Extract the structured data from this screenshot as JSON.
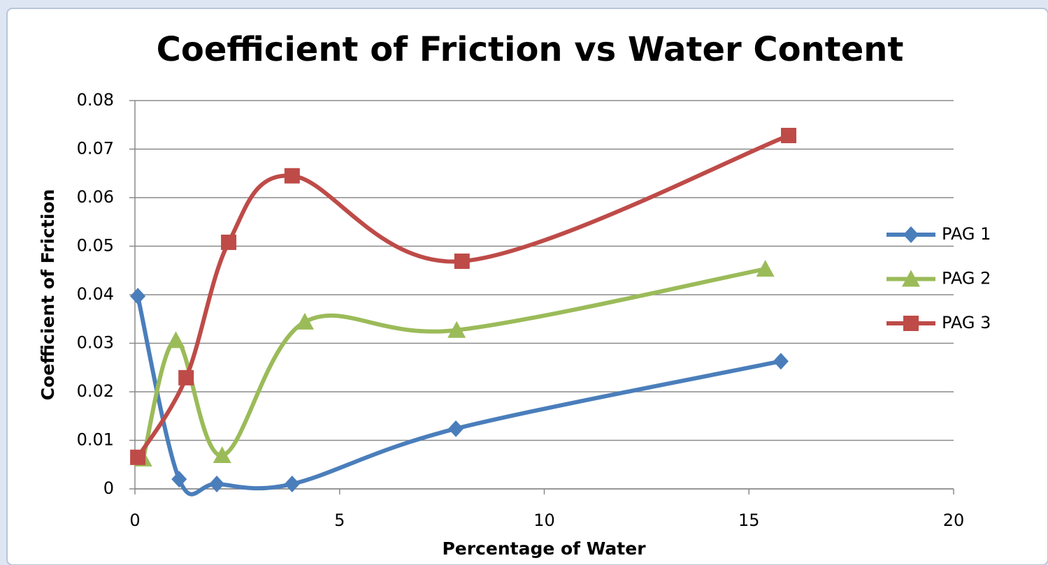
{
  "chart_data": {
    "type": "scatter-smooth",
    "title": "Coefficient of Friction vs Water Content",
    "x_label": "Percentage of Water",
    "y_label": "Coefficient of Friction",
    "series": [
      {
        "name": "PAG 1",
        "color": "#4a7ebb",
        "marker": "diamond",
        "x": [
          0.07,
          1.08,
          2.0,
          3.84,
          7.84,
          15.78
        ],
        "values": [
          0.0397,
          0.002,
          0.001,
          0.001,
          0.0124,
          0.0263
        ]
      },
      {
        "name": "PAG 2",
        "color": "#9bbb59",
        "marker": "triangle",
        "x": [
          0.2,
          1.0,
          2.13,
          4.15,
          7.86,
          15.4
        ],
        "values": [
          0.0062,
          0.0306,
          0.0069,
          0.0344,
          0.0327,
          0.0453
        ]
      },
      {
        "name": "PAG 3",
        "color": "#be4b48",
        "marker": "square",
        "x": [
          0.07,
          1.25,
          2.29,
          3.84,
          7.99,
          15.97
        ],
        "values": [
          0.0065,
          0.0229,
          0.0508,
          0.0645,
          0.0469,
          0.0728
        ]
      }
    ],
    "xlim": [
      0,
      20
    ],
    "xticks": [
      0,
      5,
      10,
      15,
      20
    ],
    "ylim": [
      0,
      0.08
    ],
    "yticks": [
      0,
      0.01,
      0.02,
      0.03,
      0.04,
      0.05,
      0.06,
      0.07,
      0.08
    ],
    "grid": true,
    "legend": "right"
  }
}
